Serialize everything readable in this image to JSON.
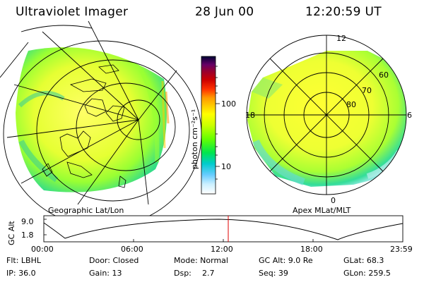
{
  "header": {
    "title": "Ultraviolet Imager",
    "date": "28 Jun 00",
    "time": "12:20:59 UT"
  },
  "left_panel": {
    "label": "Geographic Lat/Lon"
  },
  "right_panel": {
    "label": "Apex MLat/MLT",
    "mlt_ticks": [
      "12",
      "18",
      "6",
      "0"
    ],
    "lat_labels": [
      "60",
      "70",
      "80"
    ]
  },
  "colorbar": {
    "unit_label": "photon cm⁻²s⁻¹",
    "ticks": [
      "100",
      "10"
    ],
    "colors": [
      "#000033",
      "#33004d",
      "#660066",
      "#99002e",
      "#cc0000",
      "#ff3300",
      "#ff9900",
      "#ffcc00",
      "#ffff00",
      "#ccff00",
      "#66ff00",
      "#00e64d",
      "#00cccc",
      "#66ccff",
      "#ccf0ff",
      "#ffffff"
    ]
  },
  "timeline": {
    "label": "GC Alt",
    "yticks": [
      "9.0",
      "1.8"
    ],
    "xticks": [
      "00:00",
      "06:00",
      "12:00",
      "18:00",
      "23:59"
    ],
    "current_time": "12:20:59"
  },
  "status": {
    "row1": {
      "filter": "Flt: LBHL",
      "door": "Door: Closed",
      "mode": "Mode: Normal",
      "gc_alt": "GC Alt: 9.0 Re",
      "glat": "GLat:  68.3"
    },
    "row2": {
      "ip": "IP: 36.0",
      "gain": "Gain: 13",
      "dsp_label": "Dsp:",
      "dsp_value": "2.7",
      "seq": "Seq: 39",
      "glon": "GLon: 259.5"
    }
  }
}
